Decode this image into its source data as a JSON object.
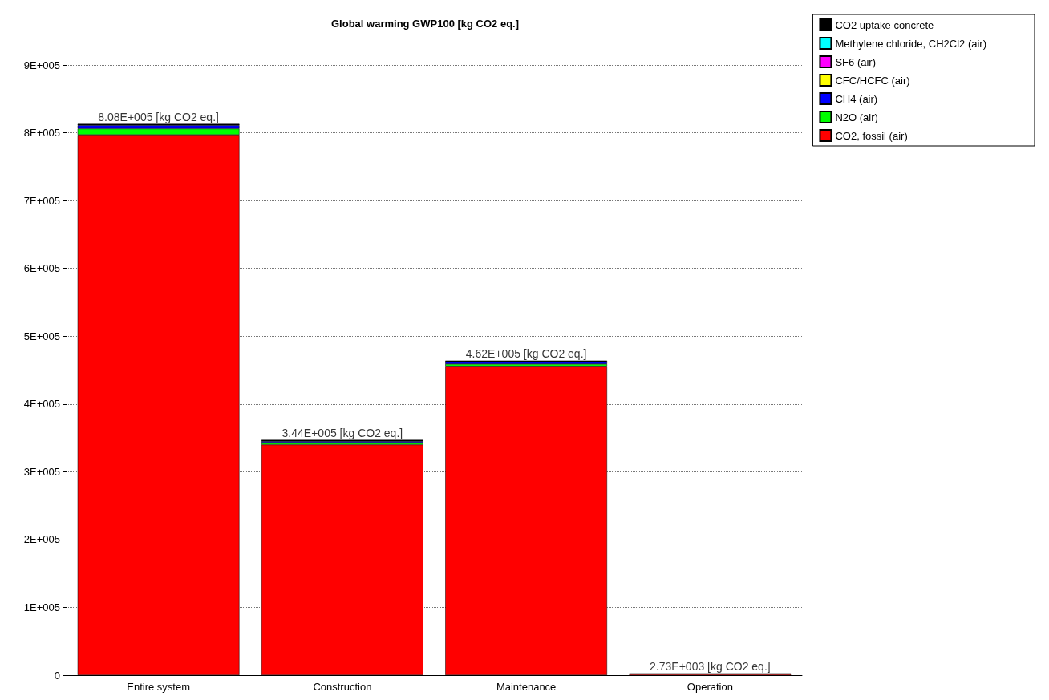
{
  "chart_data": {
    "type": "bar",
    "title": "Global warming GWP100 [kg CO2 eq.]",
    "categories": [
      "Entire system",
      "Construction",
      "Maintenance",
      "Operation"
    ],
    "stacked": true,
    "series": [
      {
        "name": "CO2, fossil (air)",
        "color": "#ff0000",
        "values": [
          797000,
          340000,
          455000,
          2700
        ]
      },
      {
        "name": "N2O (air)",
        "color": "#00ff00",
        "values": [
          9000,
          3000,
          4000,
          null
        ]
      },
      {
        "name": "CH4 (air)",
        "color": "#0000ff",
        "values": [
          5000,
          2000,
          3000,
          null
        ]
      },
      {
        "name": "CFC/HCFC (air)",
        "color": "#ffff00",
        "values": [
          null,
          null,
          null,
          null
        ]
      },
      {
        "name": "SF6 (air)",
        "color": "#ff00ff",
        "values": [
          null,
          null,
          null,
          null
        ]
      },
      {
        "name": "Methylene chloride, CH2Cl2 (air)",
        "color": "#00ffff",
        "values": [
          null,
          null,
          null,
          null
        ]
      },
      {
        "name": "CO2 uptake concrete",
        "color": "#000000",
        "values": [
          2000,
          2000,
          2000,
          null
        ]
      }
    ],
    "totals": [
      "8.08E+005 [kg CO2 eq.]",
      "3.44E+005 [kg CO2 eq.]",
      "4.62E+005 [kg CO2 eq.]",
      "2.73E+003 [kg CO2 eq.]"
    ],
    "ylim": [
      0,
      900000
    ],
    "yticks": [
      0,
      {
        "value": 100000,
        "label": "1E+005"
      },
      {
        "value": 200000,
        "label": "2E+005"
      },
      {
        "value": 300000,
        "label": "3E+005"
      },
      {
        "value": 400000,
        "label": "4E+005"
      },
      {
        "value": 500000,
        "label": "5E+005"
      },
      {
        "value": 600000,
        "label": "6E+005"
      },
      {
        "value": 700000,
        "label": "7E+005"
      },
      {
        "value": 800000,
        "label": "8E+005"
      },
      {
        "value": 900000,
        "label": "9E+005"
      }
    ],
    "grid": "y",
    "legend": "top right"
  }
}
